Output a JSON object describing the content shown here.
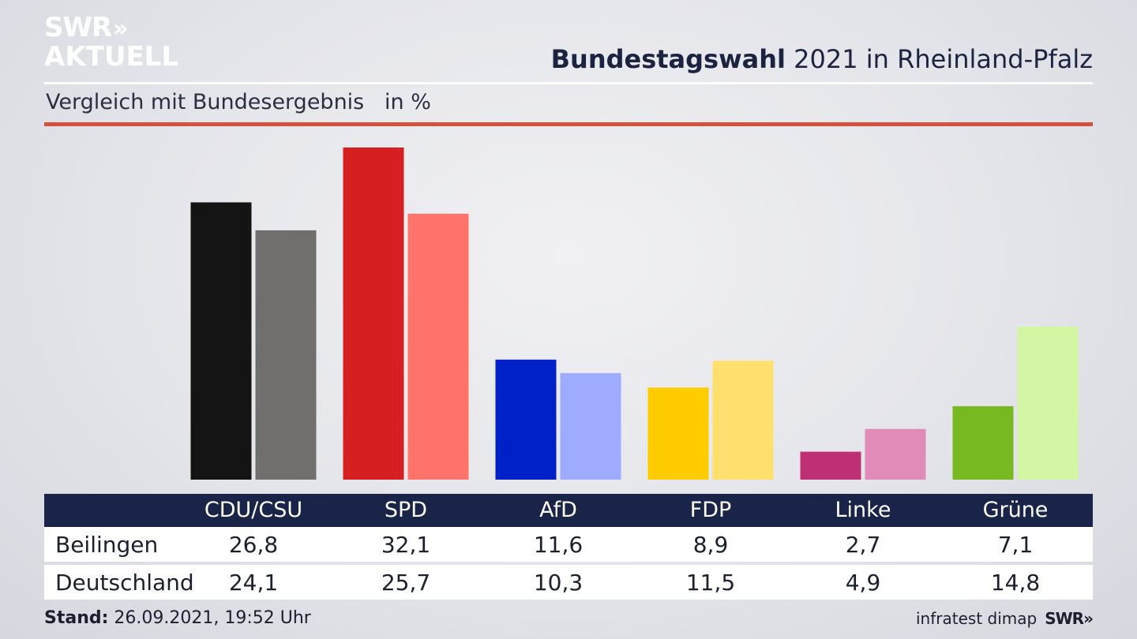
{
  "logo": {
    "line1": "SWR",
    "arrows": "»",
    "line2": "AKTUELL"
  },
  "header": {
    "title_bold": "Bundestagswahl",
    "title_rest": " 2021 in Rheinland-Pfalz"
  },
  "subtitle": "Vergleich mit Bundesergebnis   in %",
  "footer": {
    "stand_label": "Stand:",
    "stand_value": " 26.09.2021, 19:52 Uhr",
    "source": "infratest dimap",
    "brand": "SWR»"
  },
  "colors": {
    "rule_red": "#d3513f",
    "table_header": "#1a2448"
  },
  "chart_data": {
    "type": "bar",
    "title": "Bundestagswahl 2021 in Rheinland-Pfalz",
    "subtitle": "Vergleich mit Bundesergebnis   in %",
    "categories": [
      "CDU/CSU",
      "SPD",
      "AfD",
      "FDP",
      "Linke",
      "Grüne"
    ],
    "series": [
      {
        "name": "Beilingen",
        "values": [
          26.8,
          32.1,
          11.6,
          8.9,
          2.7,
          7.1
        ],
        "display": [
          "26,8",
          "32,1",
          "11,6",
          "8,9",
          "2,7",
          "7,1"
        ],
        "colors": [
          "#141414",
          "#d51f20",
          "#0021c8",
          "#ffcc00",
          "#be2f75",
          "#78b820"
        ]
      },
      {
        "name": "Deutschland",
        "values": [
          24.1,
          25.7,
          10.3,
          11.5,
          4.9,
          14.8
        ],
        "display": [
          "24,1",
          "25,7",
          "10,3",
          "11,5",
          "4,9",
          "14,8"
        ],
        "colors": [
          "#706f6d",
          "#ff736b",
          "#9eabff",
          "#ffe06f",
          "#e18bb8",
          "#d4f5a4"
        ]
      }
    ],
    "ylim": [
      0,
      32.1
    ]
  }
}
